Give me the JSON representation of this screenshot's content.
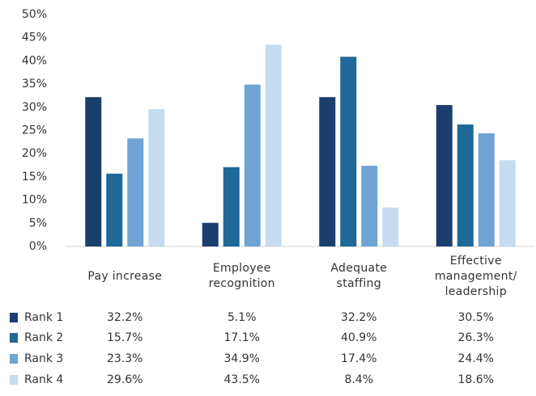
{
  "chart_data": {
    "type": "bar",
    "categories": [
      "Pay increase",
      "Employee recognition",
      "Adequate staffing",
      "Effective management/ leadership"
    ],
    "series": [
      {
        "name": "Rank 1",
        "color": "#1b3f6d",
        "values": [
          32.2,
          5.1,
          32.2,
          30.5
        ],
        "value_labels": [
          "32.2%",
          "5.1%",
          "32.2%",
          "30.5%"
        ]
      },
      {
        "name": "Rank 2",
        "color": "#1f6898",
        "values": [
          15.7,
          17.1,
          40.9,
          26.3
        ],
        "value_labels": [
          "15.7%",
          "17.1%",
          "40.9%",
          "26.3%"
        ]
      },
      {
        "name": "Rank 3",
        "color": "#6fa3d3",
        "values": [
          23.3,
          34.9,
          17.4,
          24.4
        ],
        "value_labels": [
          "23.3%",
          "34.9%",
          "17.4%",
          "24.4%"
        ]
      },
      {
        "name": "Rank 4",
        "color": "#c6dbef",
        "values": [
          29.6,
          43.5,
          8.4,
          18.6
        ],
        "value_labels": [
          "29.6%",
          "43.5%",
          "8.4%",
          "18.6%"
        ]
      }
    ],
    "ylim": [
      0,
      50
    ],
    "yticks": [
      {
        "value": 0,
        "label": "0%"
      },
      {
        "value": 5,
        "label": "5%"
      },
      {
        "value": 10,
        "label": "10%"
      },
      {
        "value": 15,
        "label": "15%"
      },
      {
        "value": 20,
        "label": "20%"
      },
      {
        "value": 25,
        "label": "25%"
      },
      {
        "value": 30,
        "label": "30%"
      },
      {
        "value": 35,
        "label": "35%"
      },
      {
        "value": 40,
        "label": "40%"
      },
      {
        "value": 45,
        "label": "45%"
      },
      {
        "value": 50,
        "label": "50%"
      }
    ],
    "grid": false
  }
}
